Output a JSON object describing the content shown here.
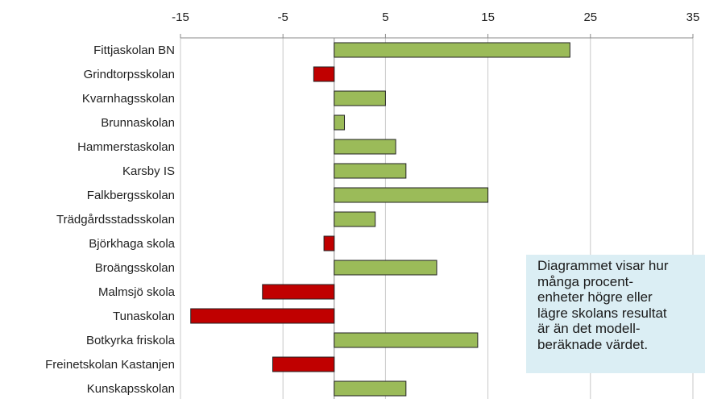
{
  "chart_data": {
    "type": "bar",
    "orientation": "horizontal",
    "categories": [
      "Fittjaskolan BN",
      "Grindtorpsskolan",
      "Kvarnhagsskolan",
      "Brunnaskolan",
      "Hammerstaskolan",
      "Karsby IS",
      "Falkbergsskolan",
      "Trädgårdsstadsskolan",
      "Björkhaga skola",
      "Broängsskolan",
      "Malmsjö skola",
      "Tunaskolan",
      "Botkyrka friskola",
      "Freinetskolan Kastanjen",
      "Kunskapsskolan"
    ],
    "values": [
      23,
      -2,
      5,
      1,
      6,
      7,
      15,
      4,
      -1,
      10,
      -7,
      -14,
      14,
      -6,
      7
    ],
    "positive_color": "#9bbb59",
    "negative_color": "#c00000",
    "xlim": [
      -15,
      35
    ],
    "xticks": [
      "-15",
      "-5",
      "5",
      "15",
      "25",
      "35"
    ],
    "axis_position": "top",
    "grid": true
  },
  "note": {
    "lines": [
      "Diagrammet visar hur",
      "många procent-",
      "enheter högre eller",
      "lägre skolans resultat",
      "är än det modell-",
      "beräknade värdet."
    ]
  }
}
